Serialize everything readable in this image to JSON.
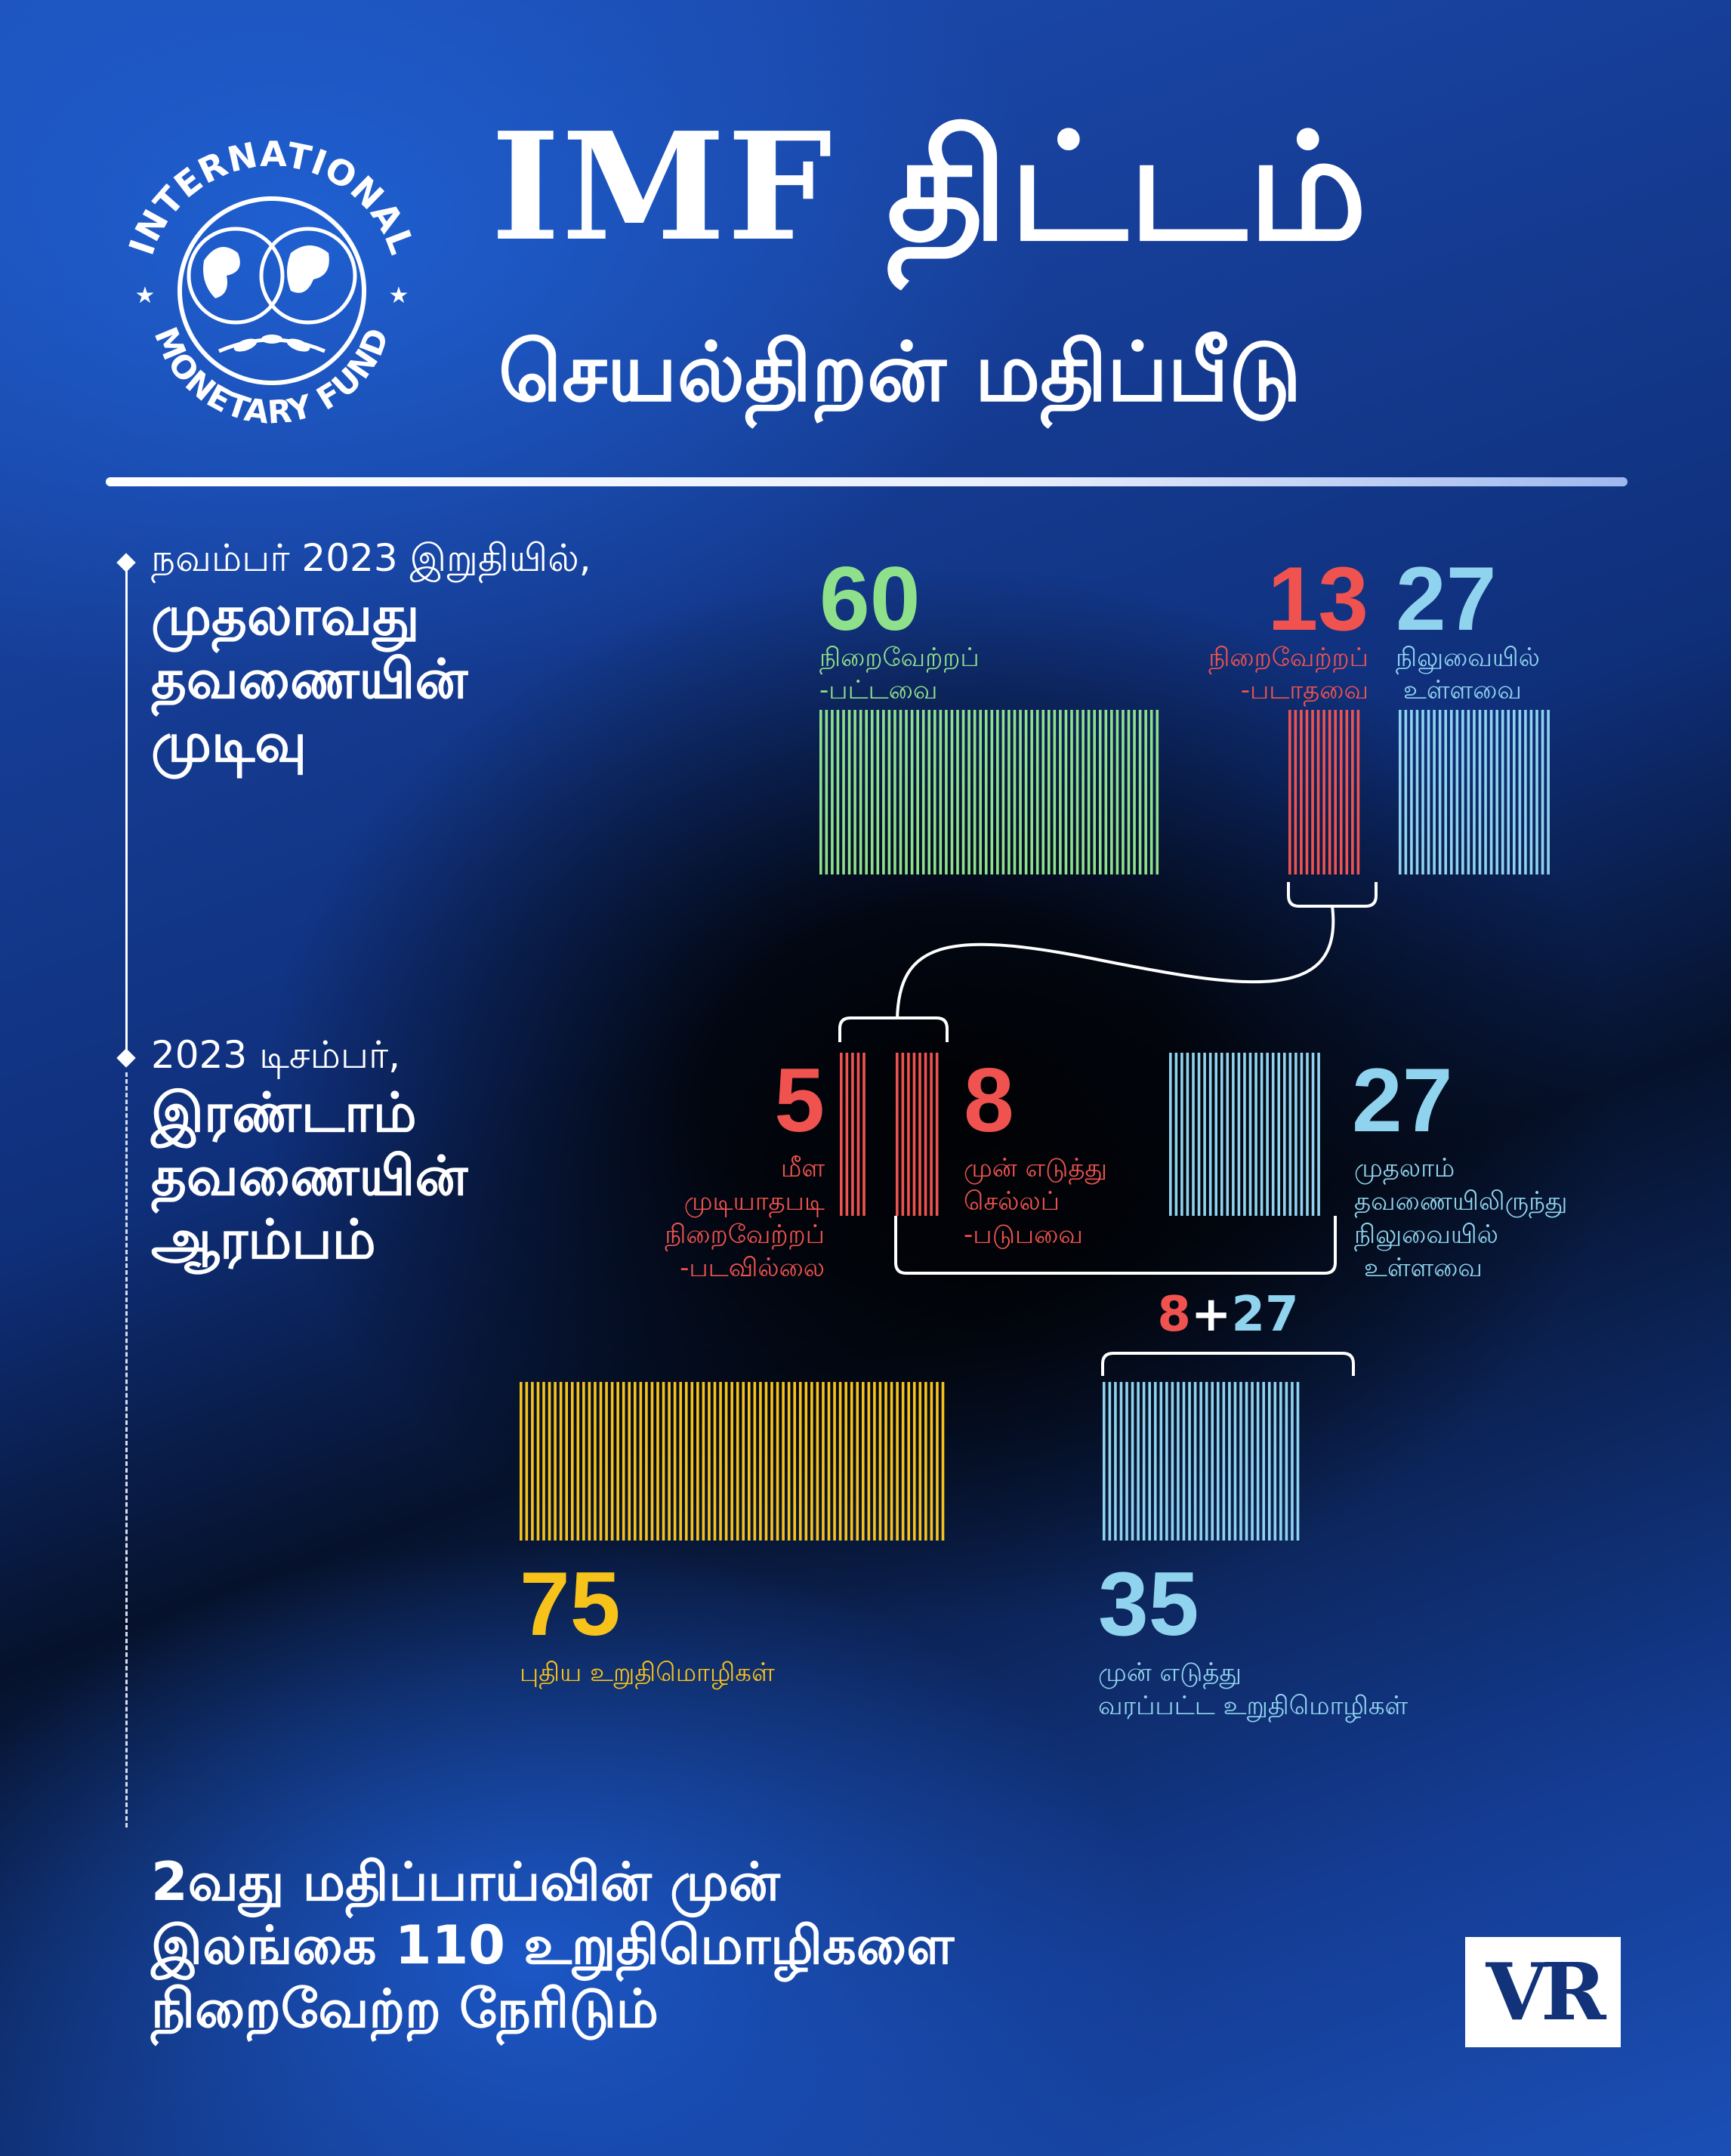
{
  "title": {
    "main": "IMF திட்டம்",
    "sub": "செயல்திறன் மதிப்பீடு"
  },
  "logo": {
    "ring_top": "INTERNATIONAL",
    "ring_bottom": "MONETARY FUND",
    "icon": "imf-seal-globe-icon"
  },
  "stages": [
    {
      "small": "நவம்பர் 2023 இறுதியில்,",
      "big": [
        "முதலாவது",
        "தவணையின்",
        "முடிவு"
      ]
    },
    {
      "small": "2023 டிசம்பர்,",
      "big": [
        "இரண்டாம்",
        "தவணையின்",
        "ஆரம்பம்"
      ]
    }
  ],
  "colors": {
    "green": "#8fe08a",
    "red": "#f0534f",
    "blue": "#8fd3ee",
    "yellow": "#f7c21a"
  },
  "chart_data": {
    "type": "bar",
    "groups": [
      {
        "stage": "first",
        "segments": [
          {
            "value": 60,
            "label": [
              "நிறைவேற்றப்",
              "-பட்டவை"
            ],
            "color": "green"
          },
          {
            "value": 13,
            "label": [
              "நிறைவேற்றப்",
              "-படாதவை"
            ],
            "color": "red"
          },
          {
            "value": 27,
            "label": [
              "நிலுவையில்",
              "உள்ளவை"
            ],
            "color": "blue"
          }
        ]
      },
      {
        "stage": "second",
        "segments": [
          {
            "value": 5,
            "label": [
              "மீள",
              "முடியாதபடி",
              "நிறைவேற்றப்",
              "-படவில்லை"
            ],
            "color": "red"
          },
          {
            "value": 8,
            "label": [
              "முன் எடுத்து",
              "செல்லப்",
              "-படுபவை"
            ],
            "color": "red"
          },
          {
            "value": 27,
            "label": [
              "முதலாம்",
              "தவணையிலிருந்து",
              "நிலுவையில்",
              "உள்ளவை"
            ],
            "color": "blue"
          }
        ]
      },
      {
        "stage": "total",
        "segments": [
          {
            "value": 75,
            "label": [
              "புதிய உறுதிமொழிகள்"
            ],
            "color": "yellow"
          },
          {
            "value": 35,
            "label": [
              "முன் எடுத்து",
              "வரப்பட்ட உறுதிமொழிகள்"
            ],
            "color": "blue"
          }
        ]
      }
    ],
    "sum_label": {
      "a": "8",
      "plus": "+",
      "b": "27"
    }
  },
  "footer": {
    "lines": [
      "2வது மதிப்பாய்வின் முன்",
      "இலங்கை 110 உறுதிமொழிகளை",
      "நிறைவேற்ற நேரிடும்"
    ]
  },
  "brand": "VR"
}
